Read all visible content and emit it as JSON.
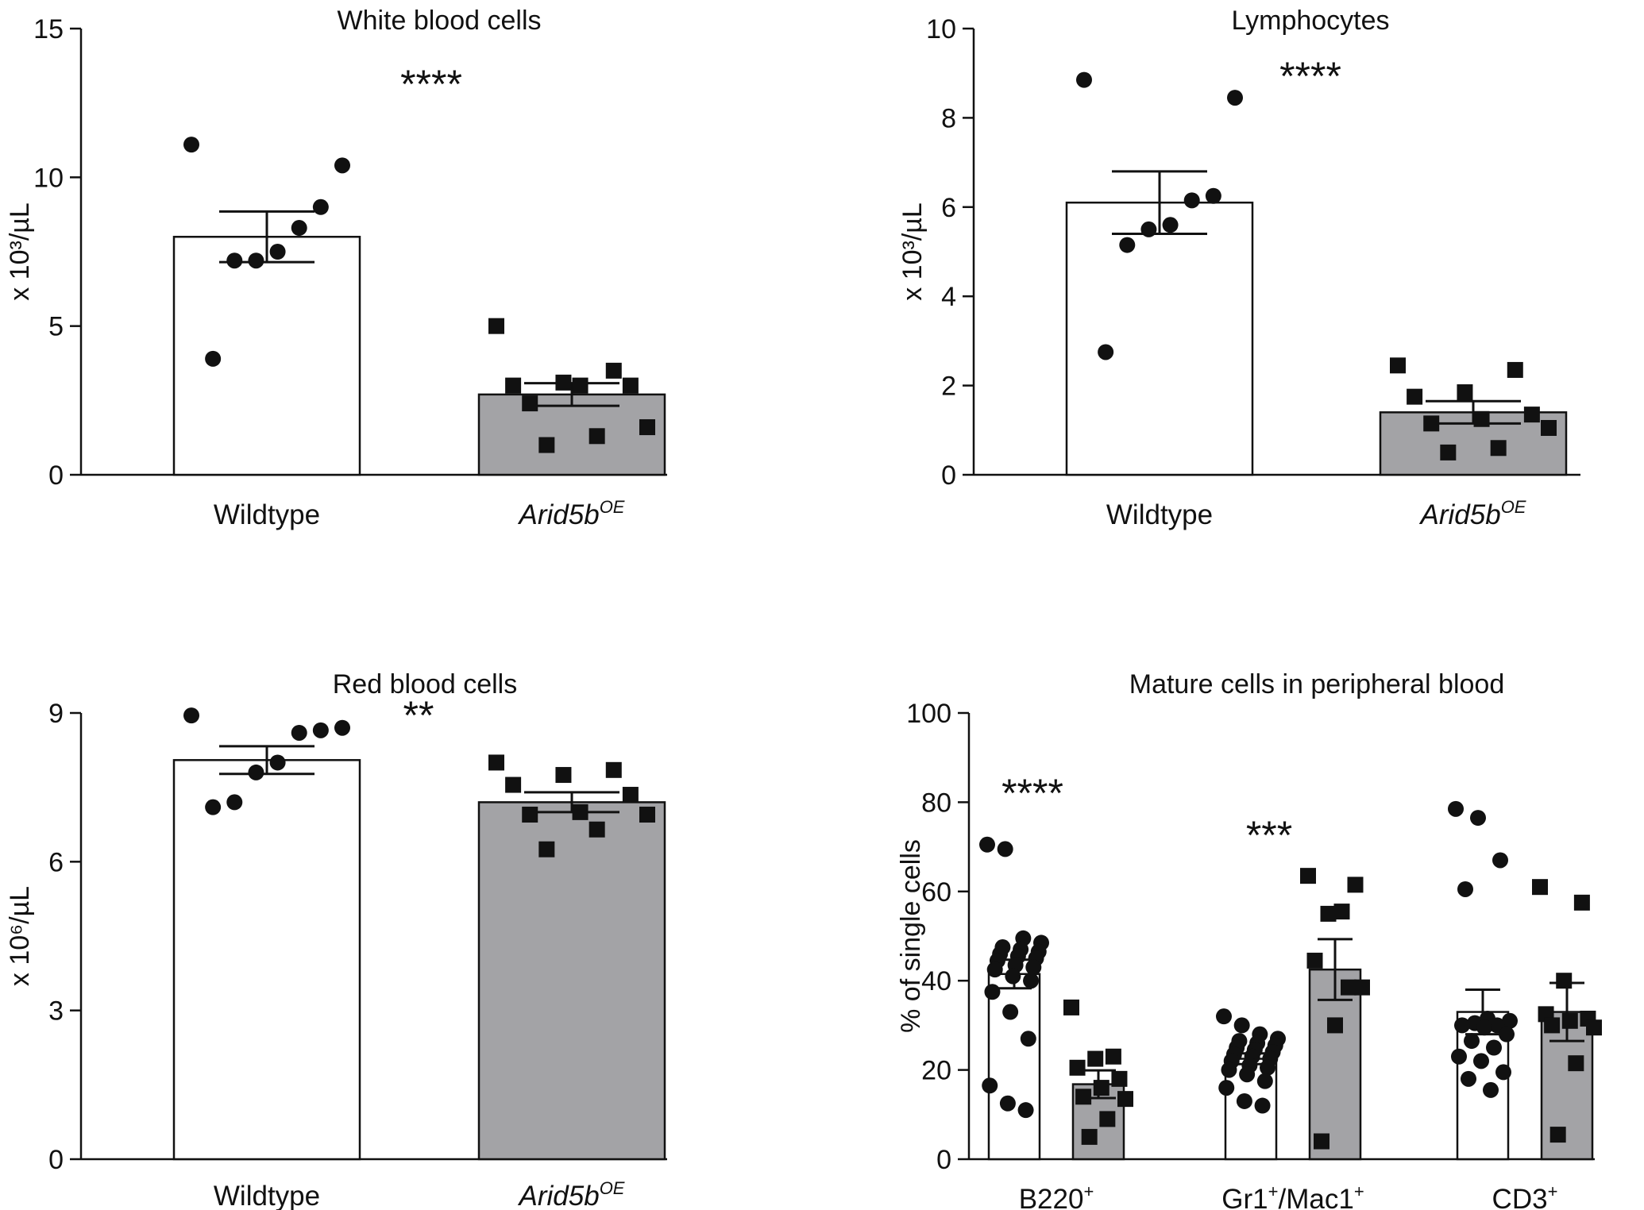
{
  "chart_data": [
    {
      "type": "bar",
      "title": "White blood cells",
      "ylabel": "x 10³/µL",
      "ylim": [
        0,
        15
      ],
      "yticks": [
        0,
        5,
        10,
        15
      ],
      "significance": "****",
      "colors": {
        "bars": [
          "#ffffff",
          "#a3a3a6"
        ]
      },
      "categories": [
        {
          "name": "Wildtype",
          "sup": ""
        },
        {
          "name": "Arid5b",
          "sup": "OE"
        }
      ],
      "series": [
        {
          "mean": 8.0,
          "sem": 0.85,
          "marker": "circle",
          "points": [
            11.1,
            10.4,
            9.0,
            8.3,
            7.5,
            7.2,
            7.2,
            3.9
          ]
        },
        {
          "mean": 2.7,
          "sem": 0.38,
          "marker": "square",
          "points": [
            5.0,
            3.5,
            3.1,
            3.0,
            3.0,
            3.0,
            2.4,
            1.6,
            1.3,
            1.0
          ]
        }
      ]
    },
    {
      "type": "bar",
      "title": "Lymphocytes",
      "ylabel": "x 10³/µL",
      "ylim": [
        0,
        10
      ],
      "yticks": [
        0,
        2,
        4,
        6,
        8,
        10
      ],
      "significance": "****",
      "colors": {
        "bars": [
          "#ffffff",
          "#a3a3a6"
        ]
      },
      "categories": [
        {
          "name": "Wildtype",
          "sup": ""
        },
        {
          "name": "Arid5b",
          "sup": "OE"
        }
      ],
      "series": [
        {
          "mean": 6.1,
          "sem": 0.7,
          "marker": "circle",
          "points": [
            8.85,
            8.45,
            6.25,
            6.15,
            5.6,
            5.5,
            5.15,
            2.75
          ]
        },
        {
          "mean": 1.4,
          "sem": 0.25,
          "marker": "square",
          "points": [
            2.45,
            2.35,
            1.85,
            1.75,
            1.35,
            1.25,
            1.15,
            1.05,
            0.6,
            0.5
          ]
        }
      ]
    },
    {
      "type": "bar",
      "title": "Red blood cells",
      "ylabel": "x 10⁶/µL",
      "ylim": [
        0,
        9
      ],
      "yticks": [
        0,
        3,
        6,
        9
      ],
      "significance": "**",
      "colors": {
        "bars": [
          "#ffffff",
          "#a3a3a6"
        ]
      },
      "categories": [
        {
          "name": "Wildtype",
          "sup": ""
        },
        {
          "name": "Arid5b",
          "sup": "OE"
        }
      ],
      "series": [
        {
          "mean": 8.05,
          "sem": 0.28,
          "marker": "circle",
          "points": [
            8.95,
            8.7,
            8.65,
            8.6,
            8.0,
            7.8,
            7.2,
            7.1
          ]
        },
        {
          "mean": 7.2,
          "sem": 0.2,
          "marker": "square",
          "points": [
            8.0,
            7.85,
            7.75,
            7.55,
            7.35,
            7.0,
            6.95,
            6.95,
            6.65,
            6.25
          ]
        }
      ]
    },
    {
      "type": "bar",
      "title": "Mature cells in peripheral blood",
      "ylabel": "% of single cells",
      "ylim": [
        0,
        100
      ],
      "yticks": [
        0,
        20,
        40,
        60,
        80,
        100
      ],
      "colors": {
        "bars": [
          "#ffffff",
          "#a3a3a6"
        ]
      },
      "groups": [
        {
          "name": "B220",
          "sup": "+",
          "significance": "****",
          "series": [
            {
              "mean": 41.5,
              "sem": 3.2,
              "marker": "circle",
              "points": [
                70.5,
                69.5,
                49.5,
                48.5,
                47.5,
                47.0,
                46.5,
                46.0,
                45.5,
                45.0,
                44.5,
                43.5,
                43.0,
                42.5,
                41.0,
                40.0,
                37.5,
                33.0,
                27.0,
                16.5,
                12.5,
                11.0
              ]
            },
            {
              "mean": 16.8,
              "sem": 3.1,
              "marker": "square",
              "points": [
                34.0,
                23.0,
                22.5,
                20.5,
                18.0,
                16.0,
                14.0,
                13.5,
                9.0,
                5.0
              ]
            }
          ]
        },
        {
          "name": "Gr1",
          "sup": "+",
          "name2": "/Mac1",
          "sup2": "+",
          "significance": "***",
          "series": [
            {
              "mean": 22.5,
              "sem": 1.2,
              "marker": "circle",
              "points": [
                32.0,
                30.0,
                28.0,
                27.0,
                26.5,
                26.0,
                25.5,
                25.0,
                24.5,
                24.0,
                23.5,
                23.0,
                22.5,
                22.0,
                21.0,
                20.5,
                20.0,
                19.0,
                17.5,
                16.0,
                13.0,
                12.0
              ]
            },
            {
              "mean": 42.5,
              "sem": 6.8,
              "marker": "square",
              "points": [
                63.5,
                61.5,
                55.5,
                55.0,
                44.5,
                38.5,
                38.5,
                30.0,
                4.0
              ]
            }
          ]
        },
        {
          "name": "CD3",
          "sup": "+",
          "significance": "",
          "series": [
            {
              "mean": 33.0,
              "sem": 5.0,
              "marker": "circle",
              "points": [
                78.5,
                76.5,
                67.0,
                60.5,
                31.5,
                31.0,
                30.5,
                30.0,
                30.0,
                29.5,
                28.0,
                26.5,
                25.0,
                23.0,
                22.0,
                19.5,
                18.0,
                15.5
              ]
            },
            {
              "mean": 33.0,
              "sem": 6.5,
              "marker": "square",
              "points": [
                61.0,
                57.5,
                40.0,
                32.5,
                31.5,
                31.0,
                30.0,
                29.5,
                21.5,
                5.5
              ]
            }
          ]
        }
      ]
    }
  ]
}
